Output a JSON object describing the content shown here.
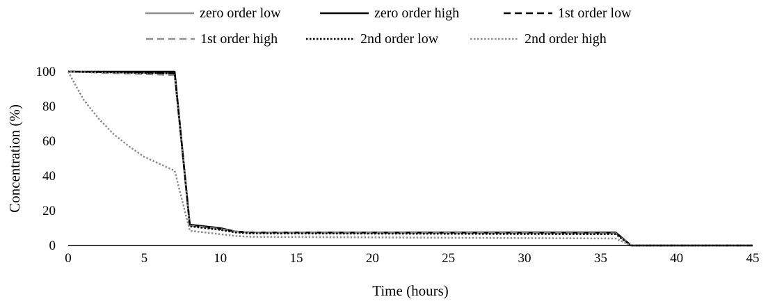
{
  "chart_data": {
    "type": "line",
    "title": "",
    "xlabel": "Time (hours)",
    "ylabel": "Concentration (%)",
    "xlim": [
      0,
      45
    ],
    "ylim": [
      0,
      100
    ],
    "xticks": [
      "0",
      "5",
      "10",
      "15",
      "20",
      "25",
      "30",
      "35",
      "40",
      "45"
    ],
    "yticks": [
      "0",
      "20",
      "40",
      "60",
      "80",
      "100"
    ],
    "grid": false,
    "legend_position": "top",
    "series": [
      {
        "name": "zero order low",
        "color": "#8c8c8c",
        "dash": "solid",
        "x": [
          0,
          7,
          8,
          10,
          11,
          12,
          36,
          37,
          38,
          45
        ],
        "y": [
          100,
          99,
          11.5,
          9.5,
          8,
          7.5,
          7,
          0,
          0,
          0
        ]
      },
      {
        "name": "zero order high",
        "color": "#000000",
        "dash": "solid",
        "x": [
          0,
          7,
          8,
          10,
          11,
          12,
          36,
          37,
          38,
          45
        ],
        "y": [
          100,
          100,
          12,
          10,
          8,
          7.5,
          7.5,
          0,
          0,
          0
        ]
      },
      {
        "name": "1st order low",
        "color": "#000000",
        "dash": "dashed",
        "x": [
          0,
          7,
          8,
          10,
          11,
          12,
          36,
          37,
          38,
          45
        ],
        "y": [
          100,
          99,
          11.5,
          9.5,
          8,
          7.5,
          7.5,
          0,
          0,
          0
        ]
      },
      {
        "name": "1st order high",
        "color": "#8c8c8c",
        "dash": "dashed",
        "x": [
          0,
          7,
          8,
          10,
          11,
          12,
          36,
          37,
          38,
          45
        ],
        "y": [
          100,
          98,
          11.5,
          9.5,
          8,
          7.5,
          7,
          0,
          0,
          0
        ]
      },
      {
        "name": "2nd order low",
        "color": "#000000",
        "dash": "dotted",
        "x": [
          0,
          7,
          8,
          10,
          11,
          12,
          36,
          37,
          38,
          45
        ],
        "y": [
          100,
          99,
          11,
          9,
          7.5,
          7,
          6.5,
          0,
          0,
          0
        ]
      },
      {
        "name": "2nd order high",
        "color": "#8c8c8c",
        "dash": "dotted",
        "x": [
          0,
          1,
          2,
          3,
          4,
          5,
          6,
          7,
          8,
          9,
          10,
          11,
          12,
          36,
          37,
          38,
          45
        ],
        "y": [
          100,
          84,
          73,
          64,
          57,
          51,
          47,
          43,
          8.5,
          7.5,
          6.5,
          5.5,
          5,
          4,
          0,
          0,
          0
        ]
      }
    ]
  }
}
